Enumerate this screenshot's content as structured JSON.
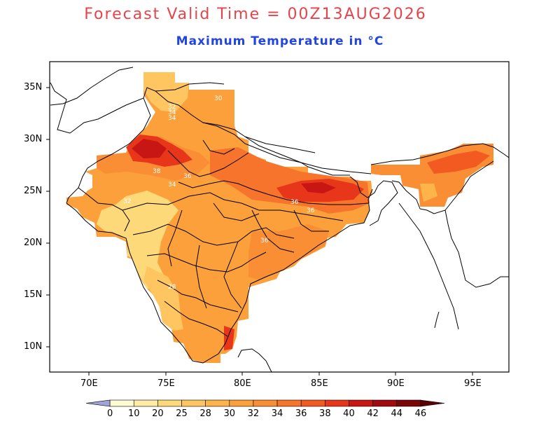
{
  "title": "Forecast Valid Time = 00Z13AUG2026",
  "subtitle": "Maximum Temperature in °C",
  "colors": {
    "title": "#e8434a",
    "subtitle": "#2244e0",
    "frame": "#000000",
    "boundary": "#000000"
  },
  "x_axis": {
    "ticks": [
      "70E",
      "75E",
      "80E",
      "85E",
      "90E",
      "95E"
    ]
  },
  "y_axis": {
    "ticks": [
      "35N",
      "30N",
      "25N",
      "20N",
      "15N",
      "10N"
    ]
  },
  "contour_labels": [
    "30",
    "32",
    "34",
    "34",
    "36",
    "38",
    "32",
    "36",
    "34",
    "36",
    "36",
    "28"
  ],
  "colorbar": {
    "labels": [
      "0",
      "10",
      "20",
      "25",
      "28",
      "30",
      "32",
      "34",
      "36",
      "38",
      "40",
      "42",
      "44",
      "46"
    ],
    "colors": [
      "#9fa3d8",
      "#fffbd2",
      "#ffeca4",
      "#fed97a",
      "#fec560",
      "#fdb44a",
      "#fca03c",
      "#fa8e34",
      "#f7742c",
      "#f25a22",
      "#e8361a",
      "#c81614",
      "#a30a10",
      "#7a0608",
      "#5a0306"
    ]
  }
}
